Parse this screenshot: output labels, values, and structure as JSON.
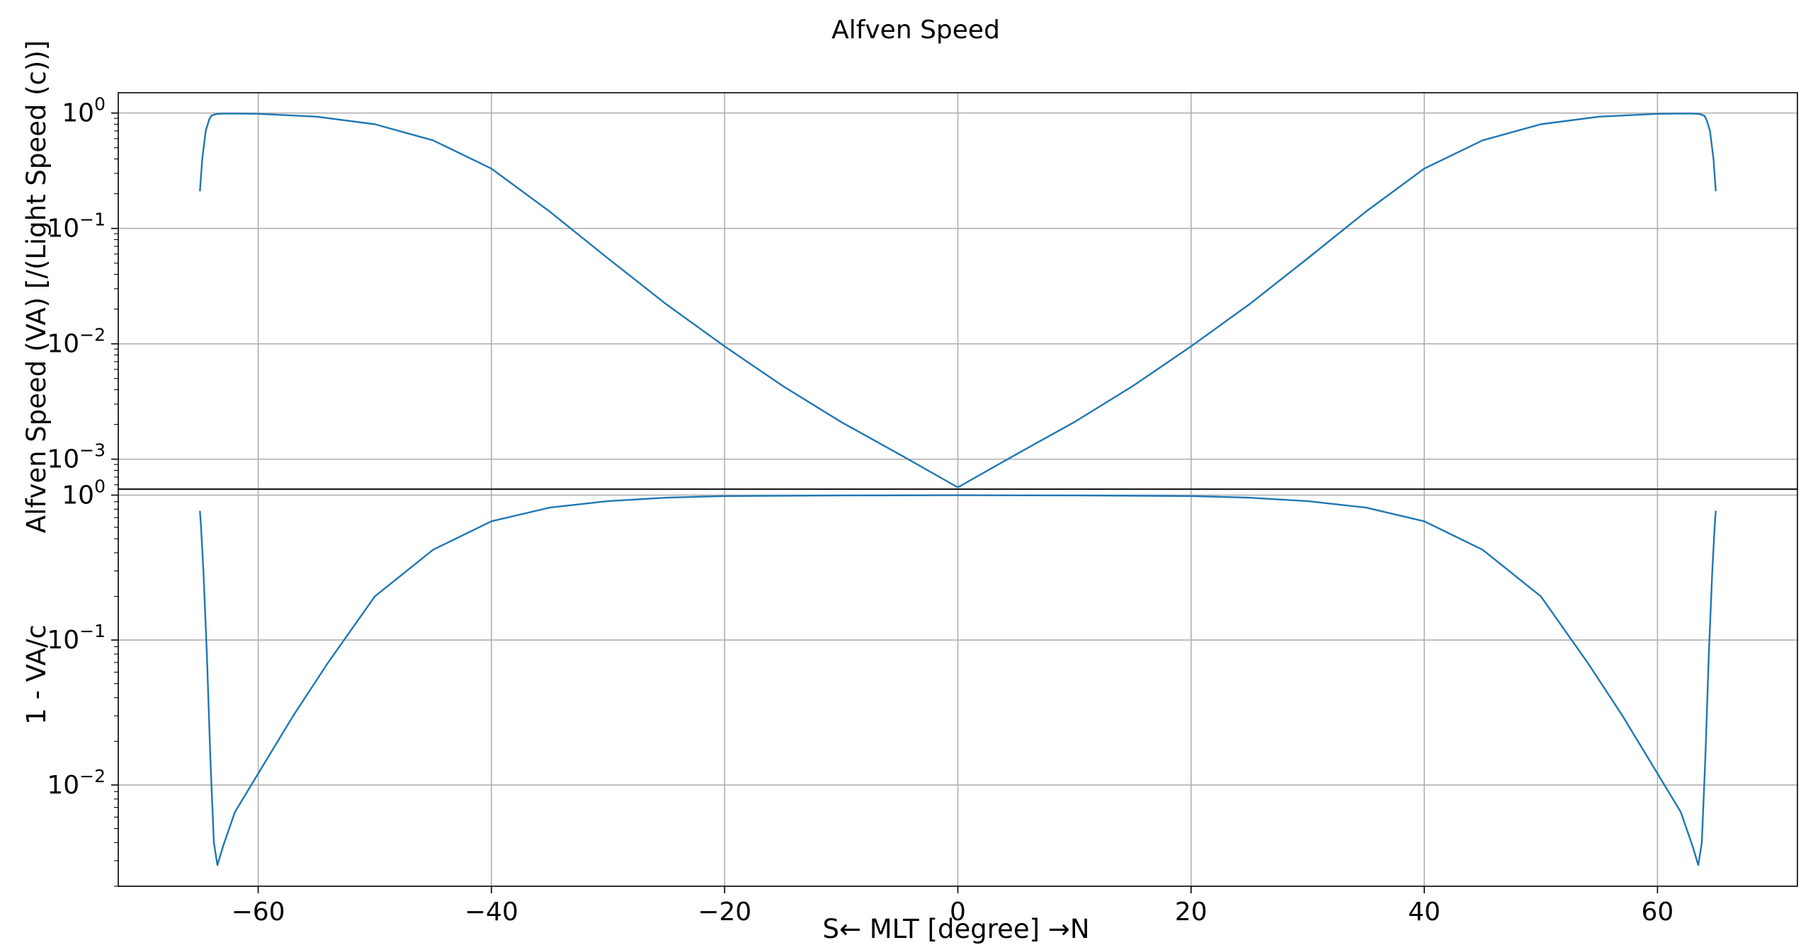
{
  "figure": {
    "title": "Alfven Speed",
    "xlabel": "S← MLT [degree] →N"
  },
  "chart_data": [
    {
      "type": "line",
      "panel": "top",
      "ylabel": "Alfven Speed (VA) [/(Light Speed (c))]",
      "yscale": "log",
      "xlim": [
        -72,
        72
      ],
      "ylim": [
        0.00055,
        1.5
      ],
      "x_ticks": [
        -60,
        -40,
        -20,
        0,
        20,
        40,
        60
      ],
      "x_tick_labels": [
        "−60",
        "−40",
        "−20",
        "0",
        "20",
        "40",
        "60"
      ],
      "y_ticks": [
        {
          "value": 1,
          "base": "10",
          "exp": "0"
        },
        {
          "value": 0.1,
          "base": "10",
          "exp": "−1"
        },
        {
          "value": 0.01,
          "base": "10",
          "exp": "−2"
        },
        {
          "value": 0.001,
          "base": "10",
          "exp": "−3"
        }
      ],
      "grid": true,
      "color": "#1f77b4",
      "x": [
        -65,
        -64.8,
        -64.5,
        -64.2,
        -64,
        -63.6,
        -63,
        -62,
        -60,
        -55,
        -50,
        -45,
        -40,
        -35,
        -30,
        -25,
        -20,
        -15,
        -10,
        -5,
        0,
        5,
        10,
        15,
        20,
        25,
        30,
        35,
        40,
        45,
        50,
        55,
        60,
        62,
        63,
        63.6,
        64,
        64.2,
        64.5,
        64.8,
        65
      ],
      "y": [
        0.21,
        0.4,
        0.7,
        0.88,
        0.95,
        0.98,
        0.99,
        0.99,
        0.985,
        0.93,
        0.8,
        0.58,
        0.33,
        0.14,
        0.055,
        0.022,
        0.0095,
        0.0043,
        0.0021,
        0.0011,
        0.00057,
        0.0011,
        0.0021,
        0.0043,
        0.0095,
        0.022,
        0.055,
        0.14,
        0.33,
        0.58,
        0.8,
        0.93,
        0.985,
        0.99,
        0.99,
        0.98,
        0.95,
        0.88,
        0.7,
        0.4,
        0.21
      ]
    },
    {
      "type": "line",
      "panel": "bottom",
      "ylabel": "1 - VA/c",
      "yscale": "log",
      "xlim": [
        -72,
        72
      ],
      "ylim": [
        0.002,
        1.1
      ],
      "x_ticks": [
        -60,
        -40,
        -20,
        0,
        20,
        40,
        60
      ],
      "x_tick_labels": [
        "−60",
        "−40",
        "−20",
        "0",
        "20",
        "40",
        "60"
      ],
      "y_ticks": [
        {
          "value": 1,
          "base": "10",
          "exp": "0"
        },
        {
          "value": 0.1,
          "base": "10",
          "exp": "−1"
        },
        {
          "value": 0.01,
          "base": "10",
          "exp": "−2"
        }
      ],
      "grid": true,
      "color": "#1f77b4",
      "x": [
        -65,
        -64.9,
        -64.7,
        -64.4,
        -64.1,
        -63.8,
        -63.5,
        -63,
        -62,
        -60,
        -57,
        -54,
        -50,
        -45,
        -40,
        -35,
        -30,
        -25,
        -20,
        -10,
        0,
        10,
        20,
        25,
        30,
        35,
        40,
        45,
        50,
        54,
        57,
        60,
        62,
        63,
        63.5,
        63.8,
        64.1,
        64.4,
        64.7,
        64.9,
        65
      ],
      "y": [
        0.78,
        0.6,
        0.3,
        0.08,
        0.015,
        0.004,
        0.0028,
        0.0038,
        0.0065,
        0.012,
        0.03,
        0.07,
        0.2,
        0.42,
        0.66,
        0.82,
        0.91,
        0.96,
        0.985,
        0.995,
        0.999,
        0.995,
        0.985,
        0.96,
        0.91,
        0.82,
        0.66,
        0.42,
        0.2,
        0.07,
        0.03,
        0.012,
        0.0065,
        0.0038,
        0.0028,
        0.004,
        0.015,
        0.08,
        0.3,
        0.6,
        0.78
      ]
    }
  ]
}
